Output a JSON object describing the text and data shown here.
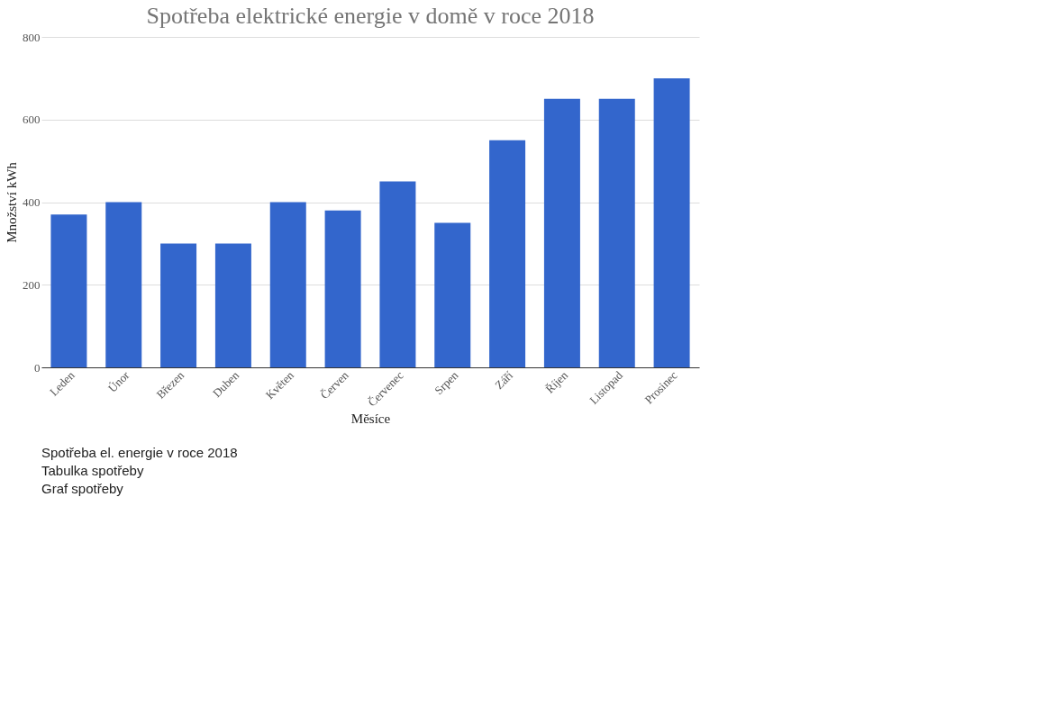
{
  "chart_data": {
    "type": "bar",
    "title": "Spotřeba elektrické energie v domě v roce 2018",
    "xlabel": "Měsíce",
    "ylabel": "Množství kWh",
    "categories": [
      "Leden",
      "Únor",
      "Březen",
      "Duben",
      "Květen",
      "Červen",
      "Červenec",
      "Srpen",
      "Září",
      "Říjen",
      "Listopad",
      "Prosinec"
    ],
    "series": [
      {
        "color": "#3366cc",
        "values": [
          370,
          400,
          300,
          300,
          400,
          380,
          450,
          350,
          550,
          650,
          650,
          700
        ]
      }
    ],
    "ylim": [
      0,
      800
    ],
    "yticks": [
      0,
      200,
      400,
      600,
      800
    ],
    "grid": "y",
    "annotations": [
      "Spotřeba el. energie v roce 2018",
      "Tabulka spotřeby",
      "Graf spotřeby"
    ]
  }
}
